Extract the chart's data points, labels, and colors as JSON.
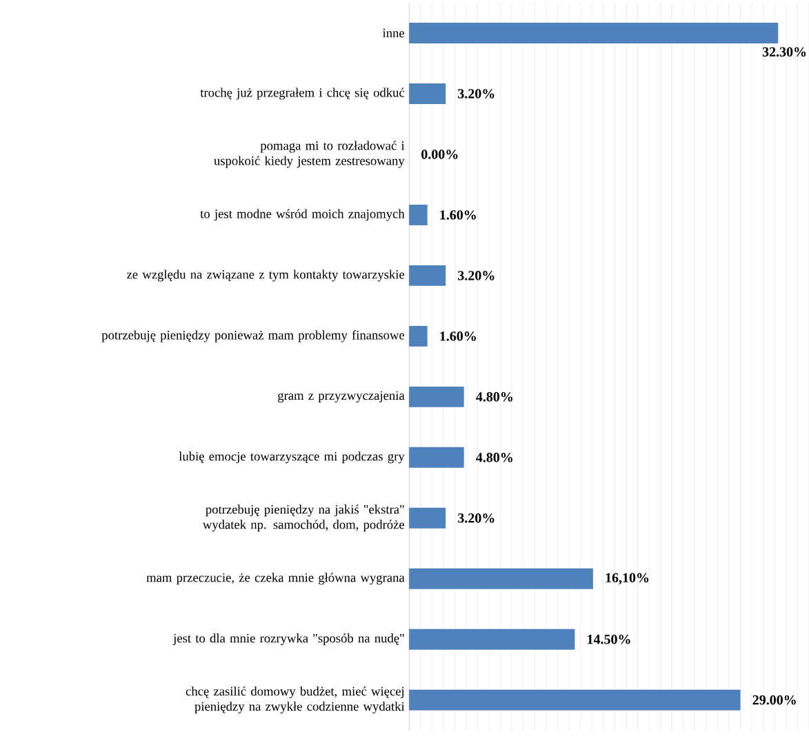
{
  "chart_data": {
    "type": "bar",
    "orientation": "horizontal",
    "categories": [
      "inne",
      "trochę już przegrałem i chcę się odkuć",
      "pomaga mi to rozładować i uspokoić kiedy jestem zestresowany",
      "to jest modne wśród moich znajomych",
      "ze względu na związane z tym kontakty towarzyskie",
      "potrzebuję pieniędzy ponieważ mam problemy finansowe",
      "gram z przyzwyczajenia",
      "lubię emocje towarzyszące mi podczas gry",
      "potrzebuję pieniędzy na jakiś \"ekstra\" wydatek np. samochód, dom, podróże",
      "mam przeczucie, że czeka mnie główna wygrana",
      "jest to dla mnie rozrywka \"sposób na nudę\"",
      "chcę zasilić domowy budżet, mieć więcej pieniędzy na zwykłe codzienne wydatki"
    ],
    "values": [
      32.3,
      3.2,
      0.0,
      1.6,
      3.2,
      1.6,
      4.8,
      4.8,
      3.2,
      16.1,
      14.5,
      29.0
    ],
    "value_labels": [
      "32.30%",
      "3.20%",
      "0.00%",
      "1.60%",
      "3.20%",
      "1.60%",
      "4.80%",
      "4.80%",
      "3.20%",
      "16,10%",
      "14.50%",
      "29.00%"
    ],
    "color": "#4f81bd",
    "xlim": [
      0,
      35
    ],
    "xticks": [
      {
        "value": 0,
        "label": null
      },
      {
        "value": 1,
        "label": null
      },
      {
        "value": 2,
        "label": null
      },
      {
        "value": 3,
        "label": null
      },
      {
        "value": 4,
        "label": null
      },
      {
        "value": 5,
        "label": null
      },
      {
        "value": 6,
        "label": null
      },
      {
        "value": 7,
        "label": null
      },
      {
        "value": 8,
        "label": null
      },
      {
        "value": 9,
        "label": null
      },
      {
        "value": 10,
        "label": null
      },
      {
        "value": 11,
        "label": null
      },
      {
        "value": 12,
        "label": null
      },
      {
        "value": 13,
        "label": null
      },
      {
        "value": 14,
        "label": null
      },
      {
        "value": 15,
        "label": null
      },
      {
        "value": 16,
        "label": null
      },
      {
        "value": 17,
        "label": null
      },
      {
        "value": 18,
        "label": null
      },
      {
        "value": 19,
        "label": null
      },
      {
        "value": 20,
        "label": null
      },
      {
        "value": 21,
        "label": null
      },
      {
        "value": 22,
        "label": null
      },
      {
        "value": 23,
        "label": null
      },
      {
        "value": 24,
        "label": null
      },
      {
        "value": 25,
        "label": null
      },
      {
        "value": 26,
        "label": null
      },
      {
        "value": 27,
        "label": null
      },
      {
        "value": 28,
        "label": null
      },
      {
        "value": 29,
        "label": null
      },
      {
        "value": 30,
        "label": null
      },
      {
        "value": 31,
        "label": null
      },
      {
        "value": 32,
        "label": null
      },
      {
        "value": 33,
        "label": null
      },
      {
        "value": 34,
        "label": null
      },
      {
        "value": 35,
        "label": null
      }
    ],
    "grid": "x",
    "tick_labels": "y"
  }
}
